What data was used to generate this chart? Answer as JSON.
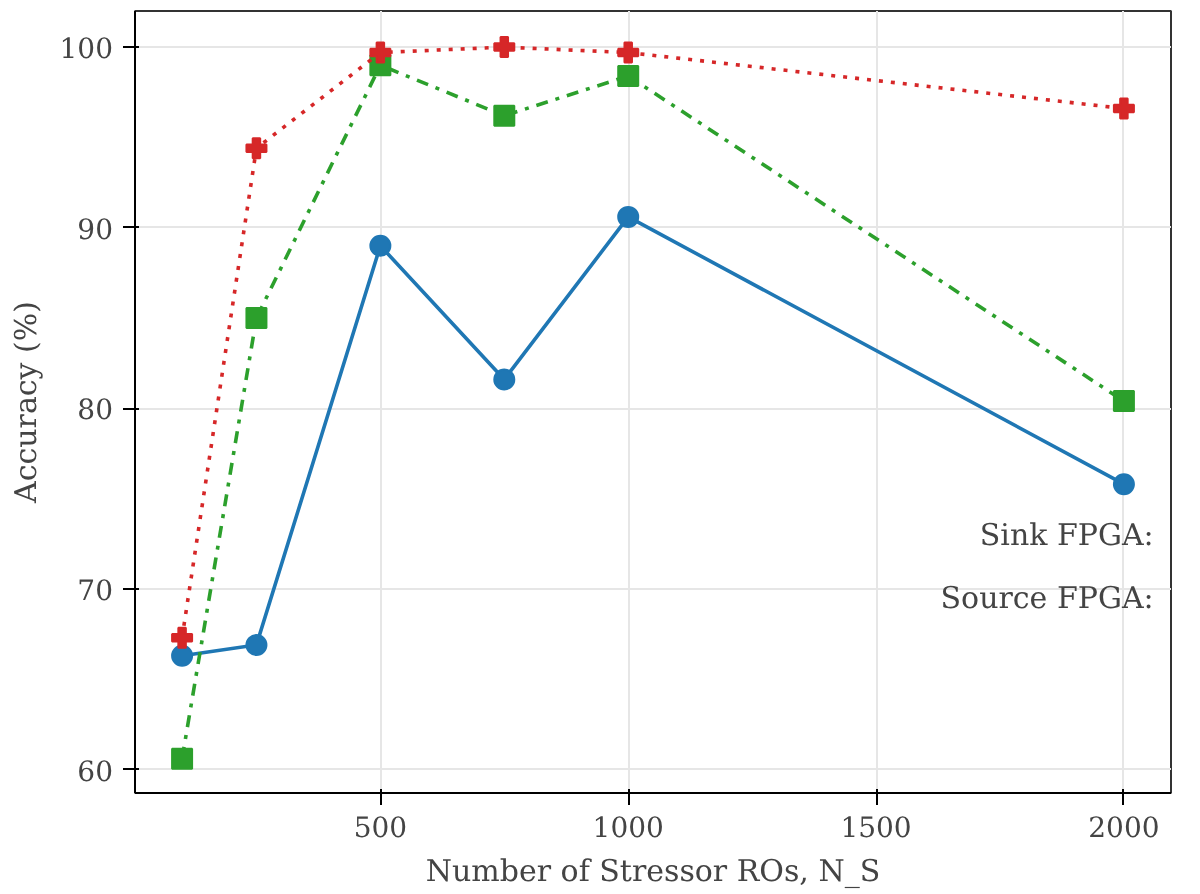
{
  "chart_data": {
    "type": "line",
    "xlabel": "Number of Stressor ROs, N_S",
    "ylabel": "Accuracy (%)",
    "x": [
      100,
      250,
      500,
      750,
      1000,
      2000
    ],
    "series": [
      {
        "color": "#1f77b4",
        "marker": "circle",
        "line_style": "solid",
        "values": [
          66.3,
          66.9,
          89.0,
          81.6,
          90.6,
          75.8
        ]
      },
      {
        "color": "#2ca02c",
        "marker": "square",
        "line_style": "dashdot",
        "values": [
          60.6,
          85.0,
          99.0,
          96.2,
          98.4,
          80.4
        ]
      },
      {
        "color": "#d62728",
        "marker": "cross",
        "line_style": "dotted",
        "values": [
          67.3,
          94.4,
          99.7,
          100.0,
          99.7,
          96.6
        ]
      }
    ],
    "xlim": [
      5,
      2095
    ],
    "ylim": [
      58.7,
      102
    ],
    "xticks": [
      500,
      1000,
      1500,
      2000
    ],
    "yticks": [
      60,
      70,
      80,
      90,
      100
    ],
    "grid": true,
    "annotations": [
      "Sink FPGA:",
      "Source FPGA:"
    ]
  }
}
